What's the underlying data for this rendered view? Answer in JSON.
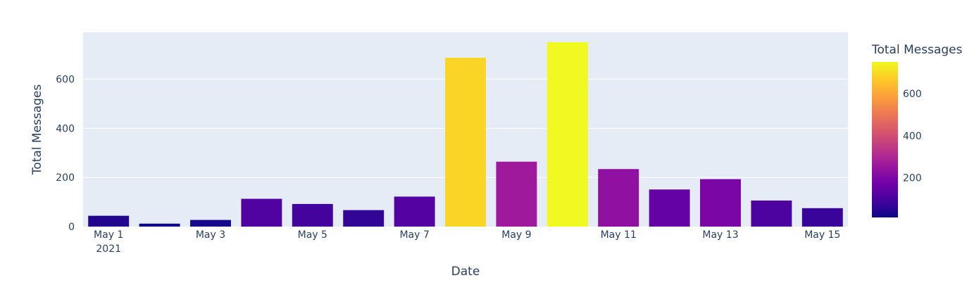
{
  "chart_data": {
    "type": "bar",
    "x": [
      "2021-05-01",
      "2021-05-02",
      "2021-05-03",
      "2021-05-04",
      "2021-05-05",
      "2021-05-06",
      "2021-05-07",
      "2021-05-08",
      "2021-05-09",
      "2021-05-10",
      "2021-05-11",
      "2021-05-12",
      "2021-05-13",
      "2021-05-14",
      "2021-05-15"
    ],
    "values": [
      44,
      12,
      27,
      113,
      92,
      67,
      122,
      687,
      264,
      750,
      234,
      151,
      193,
      106,
      75
    ],
    "xlabel": "Date",
    "ylabel": "Total Messages",
    "ylim": [
      0,
      790
    ],
    "yticks": [
      0,
      200,
      400,
      600
    ],
    "xticks": [
      {
        "date": "2021-05-01",
        "label": "May 1",
        "sub": "2021"
      },
      {
        "date": "2021-05-03",
        "label": "May 3"
      },
      {
        "date": "2021-05-05",
        "label": "May 5"
      },
      {
        "date": "2021-05-07",
        "label": "May 7"
      },
      {
        "date": "2021-05-09",
        "label": "May 9"
      },
      {
        "date": "2021-05-11",
        "label": "May 11"
      },
      {
        "date": "2021-05-13",
        "label": "May 13"
      },
      {
        "date": "2021-05-15",
        "label": "May 15"
      }
    ],
    "grid": true,
    "colorbar": {
      "title": "Total Messages",
      "range": [
        12,
        750
      ],
      "ticks": [
        200,
        400,
        600
      ],
      "colorscale": [
        "#0d0887",
        "#46039f",
        "#7201a8",
        "#9c179e",
        "#bd3786",
        "#d8576b",
        "#ed7953",
        "#fb9f3a",
        "#fdca26",
        "#f0f921"
      ]
    },
    "colors": {
      "plot_bg": "#e5ecf6",
      "grid": "#ffffff",
      "text": "#2a3f5f"
    }
  }
}
